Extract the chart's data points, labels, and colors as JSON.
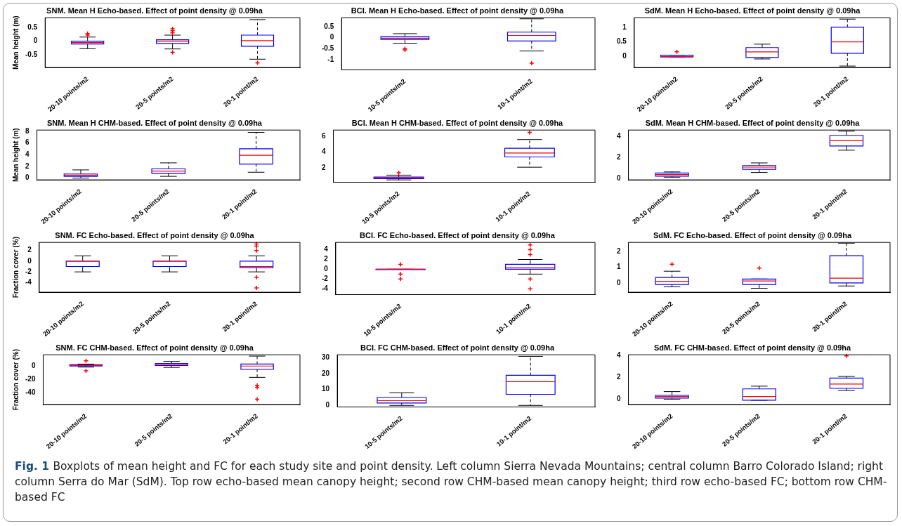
{
  "chart_data": [
    {
      "type": "box",
      "title": "SNM. Mean H Echo-based. Effect of point density @ 0.09ha",
      "ylabel": "Mean height (m)",
      "categories": [
        "20-10 points/m2",
        "20-5 points/m2",
        "20-1 point/m2"
      ],
      "ylim": [
        -0.95,
        0.85
      ],
      "yticks": [
        -0.5,
        0,
        0.5
      ],
      "grid": false,
      "series": [
        {
          "color": "#0000ff",
          "boxes": [
            {
              "low": -0.27,
              "q1": -0.1,
              "median": -0.05,
              "q3": 0.0,
              "high": 0.15,
              "outliers": [
                0.22,
                0.28
              ]
            },
            {
              "low": -0.28,
              "q1": -0.08,
              "median": 0,
              "q3": 0.05,
              "high": 0.22,
              "outliers": [
                0.3,
                0.38,
                0.45,
                -0.4
              ]
            },
            {
              "low": -0.65,
              "q1": -0.18,
              "median": 0.02,
              "q3": 0.22,
              "high": 0.78,
              "outliers": [
                -0.78
              ]
            }
          ]
        }
      ]
    },
    {
      "type": "box",
      "title": "BCI. Mean H Echo-based. Effect of point density @ 0.09ha",
      "categories": [
        "10-5 points/m2",
        "10-1 point/m2"
      ],
      "ylim": [
        -1.45,
        0.9
      ],
      "yticks": [
        -1,
        -0.5,
        0,
        0.5
      ],
      "grid": false,
      "series": [
        {
          "color": "#0000ff",
          "boxes": [
            {
              "low": -0.25,
              "q1": -0.08,
              "median": -0.02,
              "q3": 0.05,
              "high": 0.18,
              "outliers": [
                -0.5,
                -0.55
              ]
            },
            {
              "low": -0.6,
              "q1": -0.15,
              "median": 0.1,
              "q3": 0.25,
              "high": 0.85,
              "outliers": [
                -1.15
              ]
            }
          ]
        }
      ]
    },
    {
      "type": "box",
      "title": "SdM. Mean H Echo-based. Effect of point density @ 0.09ha",
      "categories": [
        "20-10 points/m2",
        "20-5 points/m2",
        "20-1 point/m2"
      ],
      "ylim": [
        -0.4,
        1.35
      ],
      "yticks": [
        0,
        0.5,
        1
      ],
      "grid": false,
      "series": [
        {
          "color": "#0000ff",
          "boxes": [
            {
              "low": -0.03,
              "q1": -0.03,
              "median": -0.02,
              "q3": 0.03,
              "high": 0.03,
              "outliers": [
                0.15
              ]
            },
            {
              "low": -0.1,
              "q1": -0.05,
              "median": 0.15,
              "q3": 0.3,
              "high": 0.42
            },
            {
              "low": -0.35,
              "q1": 0.1,
              "median": 0.5,
              "q3": 1.02,
              "high": 1.3
            }
          ]
        }
      ]
    },
    {
      "type": "box",
      "title": "SNM. Mean H CHM-based. Effect of point density @ 0.09ha",
      "ylabel": "Mean height (m)",
      "categories": [
        "20-10 points/m2",
        "20-5 points/m2",
        "20-1 point/m2"
      ],
      "ylim": [
        -0.3,
        8.2
      ],
      "yticks": [
        0,
        2,
        4,
        6,
        8
      ],
      "grid": false,
      "series": [
        {
          "color": "#0000ff",
          "boxes": [
            {
              "low": 0,
              "q1": 0.3,
              "median": 0.5,
              "q3": 0.7,
              "high": 1.4
            },
            {
              "low": 0.3,
              "q1": 0.8,
              "median": 1.2,
              "q3": 1.6,
              "high": 2.6
            },
            {
              "low": 1.0,
              "q1": 2.4,
              "median": 3.9,
              "q3": 5.0,
              "high": 7.8
            }
          ]
        }
      ]
    },
    {
      "type": "box",
      "title": "BCI. Mean H CHM-based. Effect of point density @ 0.09ha",
      "categories": [
        "10-5 points/m2",
        "10-1 point/m2"
      ],
      "ylim": [
        0.2,
        6.8
      ],
      "yticks": [
        2,
        4,
        6
      ],
      "grid": false,
      "series": [
        {
          "color": "#0000ff",
          "boxes": [
            {
              "low": 0.5,
              "q1": 0.65,
              "median": 0.75,
              "q3": 0.85,
              "high": 1.1,
              "outliers": [
                1.4
              ]
            },
            {
              "low": 2.1,
              "q1": 3.4,
              "median": 3.9,
              "q3": 4.5,
              "high": 5.6,
              "outliers": [
                6.5
              ]
            }
          ]
        }
      ]
    },
    {
      "type": "box",
      "title": "SdM. Mean H CHM-based. Effect of point density @ 0.09ha",
      "categories": [
        "20-10 points/m2",
        "20-5 points/m2",
        "20-1 point/m2"
      ],
      "ylim": [
        -0.1,
        4.6
      ],
      "yticks": [
        0,
        2,
        4
      ],
      "grid": false,
      "series": [
        {
          "color": "#0000ff",
          "boxes": [
            {
              "low": 0.15,
              "q1": 0.25,
              "median": 0.4,
              "q3": 0.55,
              "high": 0.65
            },
            {
              "low": 0.6,
              "q1": 0.9,
              "median": 1.1,
              "q3": 1.25,
              "high": 1.5
            },
            {
              "low": 2.7,
              "q1": 3.1,
              "median": 3.6,
              "q3": 4.1,
              "high": 4.5
            }
          ]
        }
      ]
    },
    {
      "type": "box",
      "title": "SNM. FC Echo-based. Effect of point density @ 0.09ha",
      "ylabel": "Fraction cover (%)",
      "categories": [
        "20-10 points/m2",
        "20-5 points/m2",
        "20-1 point/m2"
      ],
      "ylim": [
        -5.8,
        3.5
      ],
      "yticks": [
        -4,
        -2,
        0,
        2
      ],
      "grid": false,
      "series": [
        {
          "color": "#0000ff",
          "boxes": [
            {
              "low": -2,
              "q1": -1,
              "median": 0,
              "q3": 0,
              "high": 1
            },
            {
              "low": -2,
              "q1": -1,
              "median": 0,
              "q3": 0,
              "high": 1
            },
            {
              "low": -2,
              "q1": -1.2,
              "median": -1,
              "q3": 0,
              "high": 1,
              "outliers": [
                2,
                2.8,
                3.2,
                -3,
                -5
              ]
            }
          ]
        }
      ]
    },
    {
      "type": "box",
      "title": "BCI. FC Echo-based. Effect of point density @ 0.09ha",
      "categories": [
        "10-5 points/m2",
        "10-1 point/m2"
      ],
      "ylim": [
        -5.2,
        5.5
      ],
      "yticks": [
        -4,
        -2,
        0,
        2,
        4
      ],
      "grid": false,
      "series": [
        {
          "color": "#0000ff",
          "boxes": [
            {
              "low": 0,
              "q1": 0,
              "median": 0,
              "q3": 0,
              "high": 0,
              "outliers": [
                1,
                -1,
                -2
              ]
            },
            {
              "low": -1,
              "q1": 0,
              "median": 0.3,
              "q3": 1,
              "high": 2,
              "outliers": [
                3,
                4,
                5,
                -2,
                -4
              ]
            }
          ]
        }
      ]
    },
    {
      "type": "box",
      "title": "SdM. FC Echo-based. Effect of point density @ 0.09ha",
      "categories": [
        "20-10 points/m2",
        "20-5 points/m2",
        "20-1 point/m2"
      ],
      "ylim": [
        -0.6,
        2.6
      ],
      "yticks": [
        0,
        1,
        2
      ],
      "grid": false,
      "series": [
        {
          "color": "#0000ff",
          "boxes": [
            {
              "low": -0.25,
              "q1": -0.1,
              "median": 0.1,
              "q3": 0.35,
              "high": 0.75,
              "outliers": [
                1.2
              ]
            },
            {
              "low": -0.35,
              "q1": -0.1,
              "median": 0.12,
              "q3": 0.25,
              "high": 0.25,
              "outliers": [
                0.95
              ]
            },
            {
              "low": -0.2,
              "q1": 0,
              "median": 0.3,
              "q3": 1.75,
              "high": 2.55
            }
          ]
        }
      ]
    },
    {
      "type": "box",
      "title": "SNM. FC CHM-based. Effect of point density @ 0.09ha",
      "ylabel": "Fraction cover (%)",
      "categories": [
        "20-10 points/m2",
        "20-5 points/m2",
        "20-1 point/m2"
      ],
      "ylim": [
        -58,
        17
      ],
      "yticks": [
        -40,
        -20,
        0
      ],
      "grid": false,
      "series": [
        {
          "color": "#0000ff",
          "boxes": [
            {
              "low": -1.5,
              "q1": 0,
              "median": 1,
              "q3": 2,
              "high": 3,
              "outliers": [
                8,
                -7
              ]
            },
            {
              "low": -2,
              "q1": 1,
              "median": 2,
              "q3": 4,
              "high": 7
            },
            {
              "low": -17,
              "q1": -5,
              "median": 0,
              "q3": 3,
              "high": 15,
              "outliers": [
                -29,
                -32,
                -50
              ]
            }
          ]
        }
      ]
    },
    {
      "type": "box",
      "title": "BCI. FC CHM-based. Effect of point density @ 0.09ha",
      "categories": [
        "10-5 points/m2",
        "10-1 point/m2"
      ],
      "ylim": [
        -1,
        32
      ],
      "yticks": [
        0,
        10,
        20,
        30
      ],
      "grid": false,
      "series": [
        {
          "color": "#0000ff",
          "boxes": [
            {
              "low": 0,
              "q1": 1.5,
              "median": 3,
              "q3": 5,
              "high": 8
            },
            {
              "low": 0,
              "q1": 7,
              "median": 15,
              "q3": 19,
              "high": 31
            }
          ]
        }
      ]
    },
    {
      "type": "box",
      "title": "SdM. FC CHM-based. Effect of point density @ 0.09ha",
      "categories": [
        "20-10 points/m2",
        "20-5 points/m2",
        "20-1 point/m2"
      ],
      "ylim": [
        -0.5,
        4.1
      ],
      "yticks": [
        0,
        2,
        4
      ],
      "grid": false,
      "annotations": [
        "Fig. 1",
        "Boxplots of mean height and FC for each study site and point density. Left column Sierra Nevada Mountains; central column Barro Colorado Island; right column Serra do Mar (SdM). Top row echo-based mean canopy height; second row CHM-based mean canopy height; third row echo-based FC; bottom row CHM-based FC"
      ],
      "series": [
        {
          "color": "#0000ff",
          "boxes": [
            {
              "low": 0,
              "q1": 0.1,
              "median": 0.25,
              "q3": 0.35,
              "high": 0.7
            },
            {
              "low": -0.1,
              "q1": -0.1,
              "median": 0.25,
              "q3": 0.95,
              "high": 1.2
            },
            {
              "low": 0.8,
              "q1": 1.0,
              "median": 1.4,
              "q3": 1.95,
              "high": 2.1,
              "outliers": [
                4.0
              ]
            }
          ]
        }
      ]
    }
  ]
}
